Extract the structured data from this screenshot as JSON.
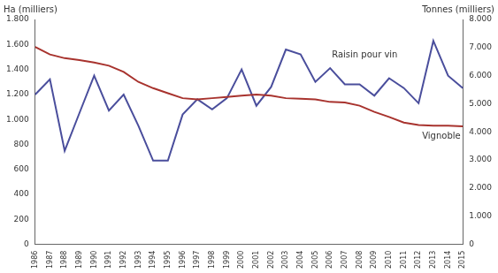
{
  "chart_data": {
    "type": "line",
    "ylabel": "Ha (milliers)",
    "y2label": "Tonnes (milliers)",
    "categories": [
      "1986",
      "1987",
      "1988",
      "1989",
      "1990",
      "1991",
      "1992",
      "1993",
      "1994",
      "1995",
      "1996",
      "1997",
      "1998",
      "1999",
      "2000",
      "2001",
      "2002",
      "2003",
      "2004",
      "2005",
      "2006",
      "2007",
      "2008",
      "2009",
      "2010",
      "2011",
      "2012",
      "2013",
      "2014",
      "2015"
    ],
    "series": [
      {
        "name": "Vignoble",
        "color": "#a8332e",
        "axis": "y",
        "values": [
          1580,
          1520,
          1490,
          1475,
          1455,
          1430,
          1380,
          1300,
          1250,
          1210,
          1170,
          1160,
          1170,
          1180,
          1190,
          1200,
          1190,
          1170,
          1165,
          1160,
          1140,
          1135,
          1110,
          1060,
          1020,
          975,
          955,
          950,
          950,
          945
        ]
      },
      {
        "name": "Raisin pour vin",
        "color": "#4a4e9c",
        "axis": "y2",
        "values": [
          5330,
          5870,
          3330,
          4670,
          6000,
          4760,
          5330,
          4220,
          2980,
          2980,
          4620,
          5160,
          4800,
          5200,
          6220,
          4930,
          5600,
          6930,
          6760,
          5780,
          6270,
          5690,
          5690,
          5290,
          5910,
          5560,
          5020,
          7240,
          6000,
          5560
        ]
      }
    ],
    "ylim": [
      0,
      1800
    ],
    "yticks": [
      0,
      200,
      400,
      600,
      800,
      {
        "value": 1000,
        "label": "1.000"
      },
      {
        "value": 1200,
        "label": "1.200"
      },
      {
        "value": 1400,
        "label": "1.400"
      },
      {
        "value": 1600,
        "label": "1.600"
      },
      {
        "value": 1800,
        "label": "1.800"
      }
    ],
    "y2lim": [
      0,
      8000
    ],
    "y2ticks": [
      0,
      {
        "value": 1000,
        "label": "1.000"
      },
      {
        "value": 2000,
        "label": "2.000"
      },
      {
        "value": 3000,
        "label": "3.000"
      },
      {
        "value": 4000,
        "label": "4.000"
      },
      {
        "value": 5000,
        "label": "5.000"
      },
      {
        "value": 6000,
        "label": "6.000"
      },
      {
        "value": 7000,
        "label": "7.000"
      },
      {
        "value": 8000,
        "label": "8.000"
      }
    ],
    "grid": false
  }
}
